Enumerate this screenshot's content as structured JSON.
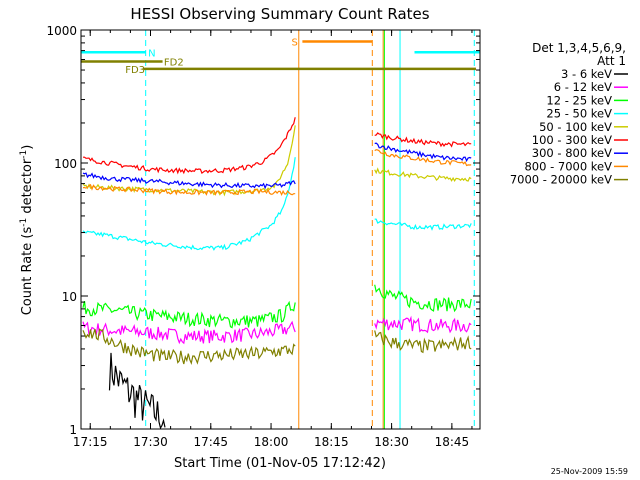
{
  "chart_data": {
    "type": "line",
    "title": "HESSI Observing Summary Count Rates",
    "xlabel": "Start Time (01-Nov-05 17:12:42)",
    "ylabel_base": "Count Rate (s",
    "ylabel_sup1": "-1",
    "ylabel_mid": " detector",
    "ylabel_sup2": "-1",
    "ylabel_end": ")",
    "ylog": true,
    "xlim": [
      17.2117,
      18.8667
    ],
    "ylim": [
      1,
      1000
    ],
    "x_ticks": [
      {
        "t": 17.25,
        "label": "17:15"
      },
      {
        "t": 17.5,
        "label": "17:30"
      },
      {
        "t": 17.75,
        "label": "17:45"
      },
      {
        "t": 18.0,
        "label": "18:00"
      },
      {
        "t": 18.25,
        "label": "18:15"
      },
      {
        "t": 18.5,
        "label": "18:30"
      },
      {
        "t": 18.75,
        "label": "18:45"
      }
    ],
    "y_ticks": [
      {
        "v": 1,
        "label": "1"
      },
      {
        "v": 10,
        "label": "10"
      },
      {
        "v": 100,
        "label": "100"
      },
      {
        "v": 1000,
        "label": "1000"
      }
    ],
    "legend_header": [
      "Det 1,3,4,5,6,9,",
      "Att 1"
    ],
    "legend_placement": "right",
    "series": [
      {
        "name": "3 - 6 keV",
        "color": "#000000",
        "segments": [
          {
            "x": [
              17.33,
              17.38,
              17.43,
              17.48,
              17.53,
              17.56
            ],
            "y": [
              3.0,
              2.2,
              1.8,
              1.5,
              1.3,
              1.2
            ]
          }
        ]
      },
      {
        "name": "6 - 12 keV",
        "color": "#ff00ff",
        "segments": [
          {
            "x": [
              17.22,
              17.35,
              17.5,
              17.65,
              17.8,
              17.95,
              18.1
            ],
            "y": [
              5.8,
              5.5,
              5.3,
              5.0,
              5.0,
              5.2,
              5.8
            ]
          },
          {
            "x": [
              18.43,
              18.55,
              18.7,
              18.83
            ],
            "y": [
              6.3,
              6.2,
              6.0,
              6.0
            ]
          }
        ]
      },
      {
        "name": "12 - 25 keV",
        "color": "#00ff00",
        "segments": [
          {
            "x": [
              17.22,
              17.35,
              17.5,
              17.65,
              17.8,
              17.95,
              18.05,
              18.1
            ],
            "y": [
              8.2,
              7.8,
              7.2,
              6.8,
              6.5,
              6.5,
              7.2,
              9.0
            ]
          },
          {
            "x": [
              18.43,
              18.5,
              18.6,
              18.7,
              18.83
            ],
            "y": [
              12.0,
              10.0,
              9.0,
              8.7,
              8.7
            ]
          }
        ]
      },
      {
        "name": "25 - 50 keV",
        "color": "#00ffff",
        "segments": [
          {
            "x": [
              17.22,
              17.3,
              17.4,
              17.5,
              17.6,
              17.7,
              17.8,
              17.9,
              18.0,
              18.05,
              18.08,
              18.1
            ],
            "y": [
              30,
              29,
              27,
              25,
              24,
              23,
              23,
              26,
              34,
              45,
              70,
              110
            ]
          },
          {
            "x": [
              18.43,
              18.5,
              18.6,
              18.7,
              18.83
            ],
            "y": [
              37,
              35,
              33,
              33,
              34
            ]
          }
        ]
      },
      {
        "name": "50 - 100 keV",
        "color": "#cccc00",
        "segments": [
          {
            "x": [
              17.22,
              17.4,
              17.6,
              17.8,
              17.95,
              18.02,
              18.07,
              18.1
            ],
            "y": [
              67,
              64,
              62,
              60,
              62,
              68,
              100,
              190
            ]
          },
          {
            "x": [
              18.43,
              18.5,
              18.6,
              18.7,
              18.83
            ],
            "y": [
              88,
              84,
              80,
              77,
              76
            ]
          }
        ]
      },
      {
        "name": "100 - 300 keV",
        "color": "#ff0000",
        "segments": [
          {
            "x": [
              17.22,
              17.3,
              17.4,
              17.5,
              17.6,
              17.7,
              17.8,
              17.9,
              17.97,
              18.03,
              18.07,
              18.1
            ],
            "y": [
              108,
              102,
              95,
              90,
              88,
              87,
              88,
              93,
              103,
              125,
              165,
              215
            ]
          },
          {
            "x": [
              18.43,
              18.5,
              18.6,
              18.7,
              18.83
            ],
            "y": [
              165,
              155,
              145,
              140,
              137
            ]
          }
        ]
      },
      {
        "name": "300 - 800 keV",
        "color": "#0000ff",
        "segments": [
          {
            "x": [
              17.22,
              17.35,
              17.5,
              17.65,
              17.8,
              17.95,
              18.05,
              18.1
            ],
            "y": [
              82,
              76,
              73,
              70,
              68,
              67,
              68,
              72
            ]
          },
          {
            "x": [
              18.43,
              18.5,
              18.6,
              18.7,
              18.83
            ],
            "y": [
              138,
              128,
              118,
              110,
              106
            ]
          }
        ]
      },
      {
        "name": "800 - 7000 keV",
        "color": "#ff8800",
        "segments": [
          {
            "x": [
              17.22,
              17.35,
              17.5,
              17.65,
              17.8,
              17.95,
              18.05,
              18.1
            ],
            "y": [
              67,
              64,
              62,
              60,
              60,
              61,
              60,
              60
            ]
          },
          {
            "x": [
              18.43,
              18.5,
              18.6,
              18.7,
              18.83
            ],
            "y": [
              125,
              115,
              108,
              102,
              98
            ]
          }
        ]
      },
      {
        "name": "7000 - 20000 keV",
        "color": "#808000",
        "segments": [
          {
            "x": [
              17.22,
              17.3,
              17.35,
              17.45,
              17.55,
              17.65,
              17.8,
              17.95,
              18.1
            ],
            "y": [
              5.5,
              5.0,
              4.5,
              3.8,
              3.5,
              3.5,
              3.6,
              3.7,
              4.0
            ]
          },
          {
            "x": [
              18.43,
              18.5,
              18.6,
              18.7,
              18.83
            ],
            "y": [
              5.0,
              4.5,
              4.2,
              4.2,
              4.5
            ]
          }
        ]
      }
    ],
    "flags": [
      {
        "label": "N",
        "color": "#00ffff",
        "y": 680,
        "x_start": 17.2117,
        "x_end": 17.48,
        "x_end2": 18.595,
        "x_end2_end": 18.8667,
        "label_x": 17.49
      },
      {
        "label": "FD2",
        "color": "#808000",
        "y": 580,
        "x_start": 17.2117,
        "x_end": 17.55,
        "label_x": 17.5555
      },
      {
        "label": "FD3",
        "color": "#808000",
        "y": 510,
        "x_start": 17.47,
        "x_end": 18.85,
        "label_x": 17.395
      },
      {
        "label": "S",
        "color": "#ff8800",
        "y": 820,
        "x_start": 18.13,
        "x_end": 18.42,
        "label_x": 18.085
      }
    ],
    "vlines": [
      {
        "t": 17.2117,
        "color": "#00ffff",
        "dash": false
      },
      {
        "t": 17.48,
        "color": "#00ffff",
        "dash": true
      },
      {
        "t": 18.115,
        "color": "#ff8800",
        "dash": false
      },
      {
        "t": 18.42,
        "color": "#ff8800",
        "dash": true
      },
      {
        "t": 18.465,
        "color": "#ff8800",
        "dash": false
      },
      {
        "t": 18.47,
        "color": "#00ff00",
        "dash": false
      },
      {
        "t": 18.535,
        "color": "#00ffff",
        "dash": false
      },
      {
        "t": 18.843,
        "color": "#00ffff",
        "dash": true
      }
    ]
  },
  "footer_timestamp": "25-Nov-2009 15:59"
}
